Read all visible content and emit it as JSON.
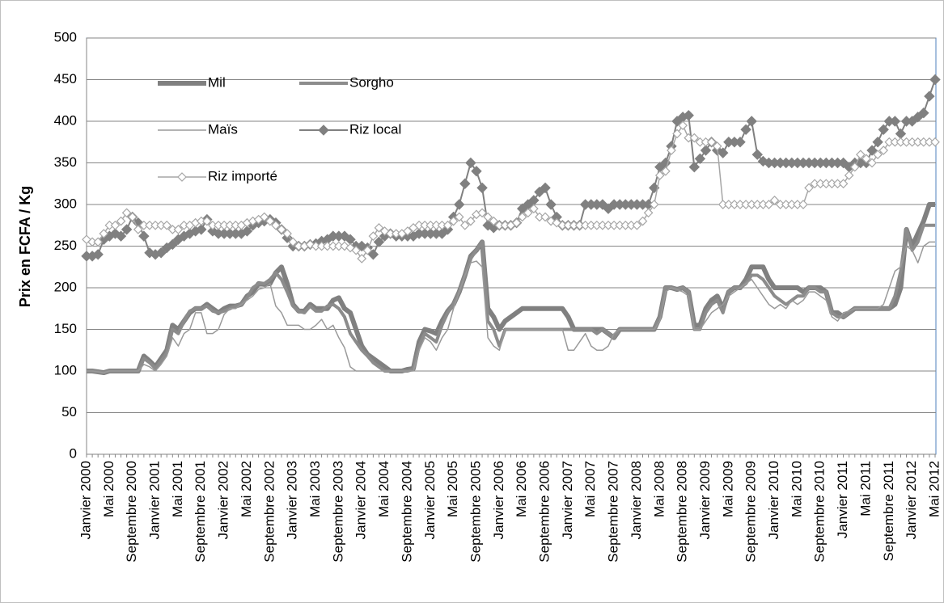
{
  "chart_data": {
    "type": "line",
    "y_label": "Prix en FCFA / Kg",
    "categories": [
      "Janvier 2000",
      null,
      null,
      null,
      "Mai 2000",
      null,
      null,
      null,
      "Septembre 2000",
      null,
      null,
      null,
      "Janvier 2001",
      null,
      null,
      null,
      "Mai 2001",
      null,
      null,
      null,
      "Septembre 2001",
      null,
      null,
      null,
      "Janvier 2002",
      null,
      null,
      null,
      "Mai 2002",
      null,
      null,
      null,
      "Septembre 2002",
      null,
      null,
      null,
      "Janvier 2003",
      null,
      null,
      null,
      "Mai 2003",
      null,
      null,
      null,
      "Septembre 2003",
      null,
      null,
      null,
      "Janvier 2004",
      null,
      null,
      null,
      "Mai 2004",
      null,
      null,
      null,
      "Septembre 2004",
      null,
      null,
      null,
      "Janvier 2005",
      null,
      null,
      null,
      "Mai 2005",
      null,
      null,
      null,
      "Septembre 2005",
      null,
      null,
      null,
      "Janvier 2006",
      null,
      null,
      null,
      "Mai 2006",
      null,
      null,
      null,
      "Septembre 2006",
      null,
      null,
      null,
      "Janvier 2007",
      null,
      null,
      null,
      "Mai 2007",
      null,
      null,
      null,
      "Septembre 2007",
      null,
      null,
      null,
      "Janvier 2008",
      null,
      null,
      null,
      "Mai 2008",
      null,
      null,
      null,
      "Septembre 2008",
      null,
      null,
      null,
      "Janvier 2009",
      null,
      null,
      null,
      "Mai 2009",
      null,
      null,
      null,
      "Septembre 2009",
      null,
      null,
      null,
      "Janvier 2010",
      null,
      null,
      null,
      "Mai 2010",
      null,
      null,
      null,
      "Septembre 2010",
      null,
      null,
      null,
      "Janvier 2011",
      null,
      null,
      null,
      "Mai 2011",
      null,
      null,
      null,
      "Septembre 2011",
      null,
      null,
      null,
      "Janvier 2012",
      null,
      null,
      null,
      "Mai 2012"
    ],
    "series": [
      {
        "name": "Mil",
        "color": "#808080",
        "marker": "none",
        "values": [
          100,
          100,
          99,
          98,
          100,
          100,
          100,
          100,
          100,
          100,
          118,
          112,
          105,
          115,
          125,
          155,
          150,
          160,
          170,
          175,
          175,
          180,
          175,
          170,
          175,
          178,
          178,
          180,
          190,
          195,
          205,
          204,
          205,
          218,
          225,
          205,
          180,
          172,
          172,
          180,
          175,
          175,
          175,
          185,
          188,
          175,
          170,
          150,
          130,
          120,
          115,
          110,
          105,
          100,
          100,
          100,
          102,
          103,
          135,
          150,
          148,
          145,
          160,
          172,
          180,
          195,
          215,
          238,
          245,
          255,
          175,
          165,
          150,
          160,
          165,
          170,
          175,
          175,
          175,
          175,
          175,
          175,
          175,
          175,
          165,
          150,
          150,
          150,
          150,
          150,
          150,
          145,
          140,
          150,
          150,
          150,
          150,
          150,
          150,
          150,
          165,
          200,
          200,
          198,
          200,
          195,
          155,
          155,
          175,
          185,
          190,
          175,
          195,
          200,
          200,
          210,
          225,
          225,
          225,
          210,
          200,
          200,
          200,
          200,
          200,
          195,
          200,
          200,
          200,
          195,
          170,
          170,
          165,
          170,
          175,
          175,
          175,
          175,
          175,
          175,
          175,
          180,
          200,
          270,
          250,
          265,
          280,
          300,
          300
        ]
      },
      {
        "name": "Sorgho",
        "color": "#8c8c8c",
        "marker": "none",
        "values": [
          100,
          100,
          99,
          98,
          100,
          100,
          100,
          100,
          100,
          100,
          115,
          110,
          103,
          112,
          122,
          150,
          145,
          160,
          172,
          175,
          175,
          178,
          172,
          170,
          172,
          175,
          178,
          180,
          188,
          200,
          205,
          205,
          210,
          218,
          210,
          195,
          178,
          172,
          170,
          178,
          172,
          172,
          178,
          180,
          175,
          165,
          145,
          135,
          125,
          118,
          110,
          105,
          100,
          100,
          100,
          100,
          100,
          102,
          130,
          145,
          140,
          135,
          155,
          170,
          180,
          195,
          215,
          235,
          245,
          255,
          160,
          150,
          130,
          150,
          150,
          150,
          150,
          150,
          150,
          150,
          150,
          150,
          150,
          150,
          150,
          150,
          150,
          150,
          150,
          145,
          150,
          145,
          140,
          150,
          150,
          150,
          150,
          150,
          150,
          150,
          165,
          200,
          200,
          198,
          200,
          195,
          150,
          150,
          170,
          180,
          185,
          170,
          195,
          200,
          200,
          205,
          215,
          215,
          210,
          200,
          190,
          185,
          180,
          185,
          190,
          190,
          200,
          200,
          195,
          195,
          170,
          165,
          165,
          170,
          175,
          175,
          175,
          175,
          175,
          175,
          175,
          190,
          220,
          270,
          245,
          255,
          275,
          275,
          275
        ]
      },
      {
        "name": "Maïs",
        "color": "#9a9a9a",
        "marker": "none",
        "values": [
          100,
          100,
          99,
          98,
          100,
          100,
          100,
          100,
          100,
          100,
          108,
          105,
          100,
          108,
          118,
          140,
          130,
          145,
          150,
          170,
          170,
          145,
          145,
          150,
          168,
          175,
          175,
          180,
          185,
          190,
          198,
          200,
          205,
          178,
          170,
          155,
          155,
          155,
          150,
          150,
          155,
          162,
          150,
          155,
          140,
          128,
          105,
          100,
          100,
          100,
          100,
          100,
          100,
          100,
          100,
          100,
          100,
          100,
          125,
          140,
          135,
          125,
          140,
          150,
          175,
          195,
          215,
          230,
          232,
          225,
          140,
          130,
          125,
          150,
          150,
          150,
          150,
          150,
          150,
          150,
          150,
          150,
          150,
          150,
          125,
          125,
          135,
          145,
          130,
          125,
          125,
          130,
          145,
          150,
          150,
          150,
          150,
          150,
          150,
          150,
          160,
          195,
          200,
          198,
          195,
          190,
          150,
          150,
          160,
          170,
          175,
          180,
          190,
          195,
          200,
          205,
          210,
          200,
          190,
          180,
          175,
          180,
          175,
          185,
          180,
          185,
          195,
          195,
          190,
          185,
          165,
          160,
          170,
          172,
          175,
          175,
          175,
          175,
          175,
          180,
          200,
          220,
          225,
          250,
          245,
          230,
          250,
          255,
          255
        ]
      },
      {
        "name": "Riz local",
        "color": "#808080",
        "marker": "diamond",
        "values": [
          238,
          238,
          240,
          258,
          262,
          265,
          262,
          270,
          285,
          278,
          262,
          242,
          240,
          242,
          248,
          252,
          258,
          262,
          265,
          268,
          270,
          282,
          268,
          265,
          265,
          265,
          265,
          265,
          268,
          275,
          278,
          280,
          282,
          278,
          270,
          260,
          250,
          250,
          250,
          252,
          253,
          256,
          258,
          262,
          262,
          262,
          258,
          250,
          250,
          248,
          240,
          255,
          262,
          265,
          262,
          262,
          262,
          262,
          265,
          265,
          265,
          265,
          265,
          270,
          285,
          300,
          325,
          350,
          340,
          320,
          275,
          272,
          275,
          275,
          275,
          278,
          295,
          300,
          305,
          315,
          320,
          300,
          285,
          275,
          275,
          275,
          275,
          300,
          300,
          300,
          300,
          295,
          300,
          300,
          300,
          300,
          300,
          300,
          300,
          320,
          345,
          350,
          370,
          400,
          405,
          407,
          345,
          355,
          365,
          375,
          365,
          362,
          375,
          375,
          375,
          390,
          400,
          360,
          352,
          350,
          350,
          350,
          350,
          350,
          350,
          350,
          350,
          350,
          350,
          350,
          350,
          350,
          350,
          345,
          350,
          350,
          350,
          365,
          375,
          390,
          400,
          400,
          385,
          400,
          400,
          405,
          410,
          430,
          450
        ]
      },
      {
        "name": "Riz importé",
        "color": "#a6a6a6",
        "marker": "open-diamond",
        "values": [
          258,
          255,
          255,
          265,
          275,
          275,
          280,
          290,
          285,
          270,
          275,
          275,
          275,
          275,
          275,
          270,
          270,
          275,
          275,
          278,
          280,
          280,
          275,
          275,
          275,
          275,
          275,
          275,
          278,
          280,
          282,
          285,
          280,
          275,
          270,
          265,
          255,
          250,
          250,
          252,
          250,
          250,
          250,
          250,
          250,
          250,
          248,
          245,
          235,
          245,
          262,
          272,
          268,
          265,
          265,
          265,
          268,
          272,
          275,
          275,
          275,
          275,
          275,
          275,
          280,
          285,
          275,
          280,
          288,
          290,
          285,
          280,
          275,
          275,
          275,
          278,
          285,
          290,
          295,
          285,
          285,
          280,
          278,
          275,
          275,
          275,
          275,
          275,
          275,
          275,
          275,
          275,
          275,
          275,
          275,
          275,
          275,
          280,
          290,
          300,
          335,
          340,
          365,
          385,
          395,
          380,
          380,
          375,
          375,
          375,
          370,
          300,
          300,
          300,
          300,
          300,
          300,
          300,
          300,
          300,
          305,
          300,
          300,
          300,
          300,
          300,
          320,
          325,
          325,
          325,
          325,
          325,
          325,
          335,
          345,
          360,
          355,
          350,
          360,
          365,
          375,
          375,
          375,
          375,
          375,
          375,
          375,
          375,
          375
        ]
      }
    ],
    "ylim": [
      0,
      500
    ],
    "yticks": [
      0,
      50,
      100,
      150,
      200,
      250,
      300,
      350,
      400,
      450,
      500
    ],
    "grid": true,
    "legend": "upper left"
  }
}
